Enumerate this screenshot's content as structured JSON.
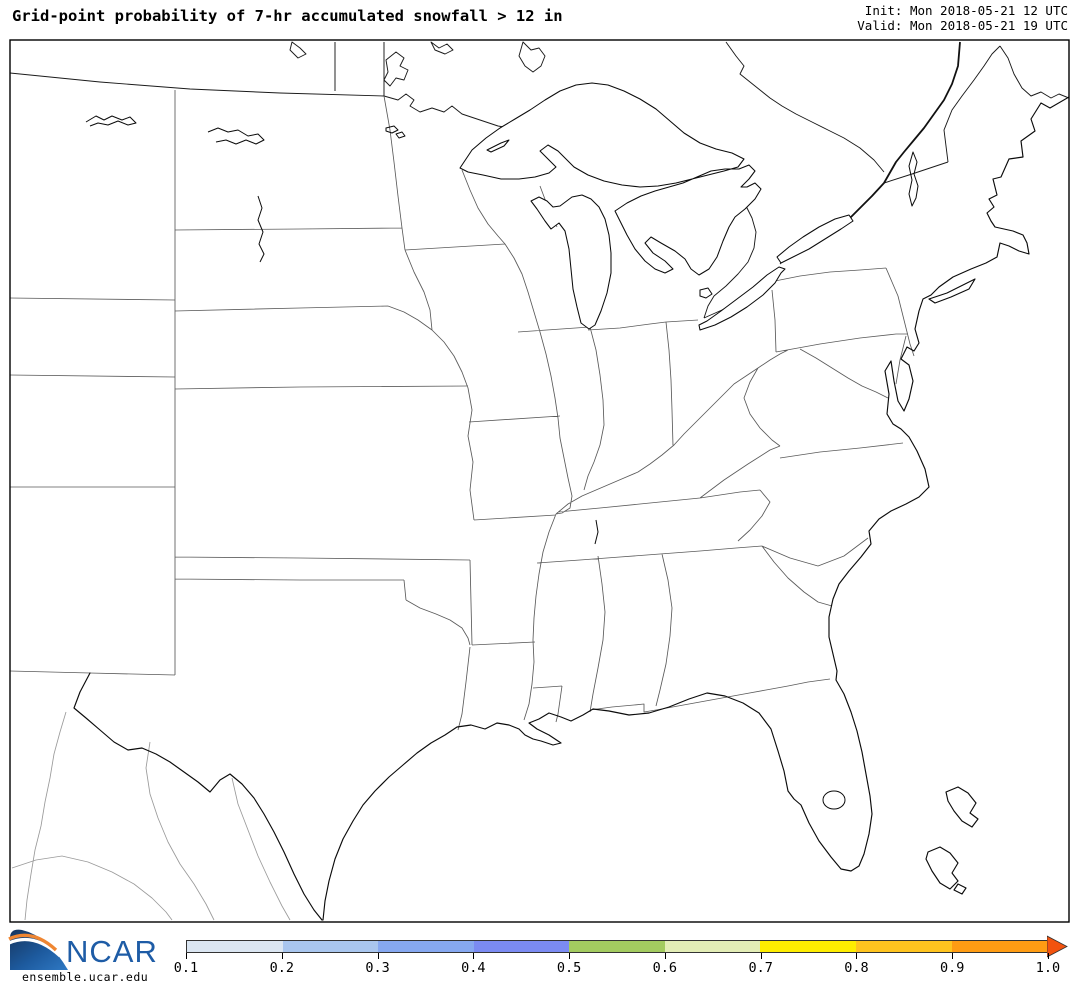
{
  "header": {
    "title": "Grid-point probability of 7-hr accumulated snowfall > 12 in",
    "init_label": "Init: Mon 2018-05-21 12 UTC",
    "valid_label": "Valid: Mon 2018-05-21 19 UTC"
  },
  "map": {
    "shaded_regions": [],
    "features": [
      "US state borders",
      "US-Canada border",
      "US-Mexico border",
      "Great Lakes",
      "Atlantic coastline",
      "Gulf of Mexico coastline",
      "Lake Champlain",
      "Lake Okeechobee",
      "Missouri River reservoirs",
      "Bahamas islands"
    ]
  },
  "footer": {
    "brand": "NCAR",
    "brand_color": "#1e5ca6",
    "site": "ensemble.ucar.edu"
  },
  "chart_data": {
    "type": "heatmap",
    "title": "Grid-point probability of 7-hr accumulated snowfall > 12 in",
    "field": "probability",
    "values_note": "no grid points exceed threshold; map area unshaded",
    "colorbar": {
      "orientation": "horizontal",
      "range": [
        0.1,
        1.0
      ],
      "ticks": [
        0.1,
        0.2,
        0.3,
        0.4,
        0.5,
        0.6,
        0.7,
        0.8,
        0.9,
        1.0
      ],
      "tick_labels": [
        "0.1",
        "0.2",
        "0.3",
        "0.4",
        "0.5",
        "0.6",
        "0.7",
        "0.8",
        "0.9",
        "1.0"
      ],
      "segment_colors": [
        "#dbe6f2",
        "#a9c6ee",
        "#86a8f0",
        "#7b8bf2",
        "#a3cb60",
        "#e3edb6",
        "#feed00",
        "#ffc41f",
        "#ff9c13"
      ],
      "arrow_color": "#f2530f"
    }
  }
}
